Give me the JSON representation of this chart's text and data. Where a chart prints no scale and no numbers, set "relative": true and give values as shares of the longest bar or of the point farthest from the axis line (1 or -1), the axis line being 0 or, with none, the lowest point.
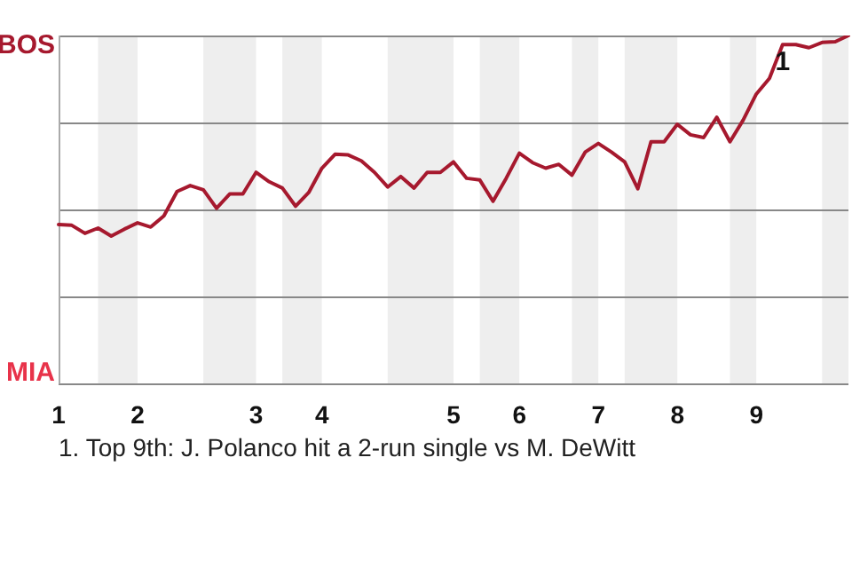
{
  "chart_data": {
    "type": "line",
    "relative": true,
    "categories": [
      "1",
      null,
      null,
      null,
      null,
      null,
      "2",
      null,
      null,
      null,
      null,
      null,
      null,
      null,
      null,
      "3",
      null,
      null,
      null,
      null,
      "4",
      null,
      null,
      null,
      null,
      null,
      null,
      null,
      null,
      null,
      "5",
      null,
      null,
      null,
      null,
      "6",
      null,
      null,
      null,
      null,
      null,
      "7",
      null,
      null,
      null,
      null,
      null,
      "8",
      null,
      null,
      null,
      null,
      null,
      "9",
      null,
      null,
      null,
      null,
      null,
      null,
      null
    ],
    "series": [
      {
        "values": [
          0.457,
          0.455,
          0.432,
          0.447,
          0.424,
          0.444,
          0.462,
          0.45,
          0.482,
          0.552,
          0.569,
          0.557,
          0.504,
          0.545,
          0.545,
          0.607,
          0.58,
          0.562,
          0.51,
          0.549,
          0.619,
          0.659,
          0.657,
          0.64,
          0.607,
          0.565,
          0.595,
          0.562,
          0.607,
          0.607,
          0.637,
          0.59,
          0.585,
          0.524,
          0.59,
          0.662,
          0.635,
          0.619,
          0.63,
          0.599,
          0.665,
          0.69,
          0.665,
          0.637,
          0.56,
          0.695,
          0.695,
          0.745,
          0.715,
          0.707,
          0.765,
          0.695,
          0.757,
          0.832,
          0.877,
          0.974,
          0.974,
          0.965,
          0.98,
          0.982,
          1
        ],
        "color": "#a6192e"
      }
    ],
    "ref_lines": [
      {
        "axis": "y",
        "value": 0,
        "color": "#888888"
      },
      {
        "axis": "y",
        "value": 0.25,
        "color": "#888888"
      },
      {
        "axis": "y",
        "value": 0.5,
        "color": "#888888"
      },
      {
        "axis": "y",
        "value": 0.75,
        "color": "#888888"
      },
      {
        "axis": "y",
        "value": 1,
        "color": "#888888"
      }
    ],
    "legend": false,
    "marker": "none",
    "annotations": [
      "BOS",
      "MIA",
      {
        "text": "1",
        "y": 0.974
      },
      "1. Top 9th: J. Polanco hit a 2-run single vs M. DeWitt"
    ]
  }
}
